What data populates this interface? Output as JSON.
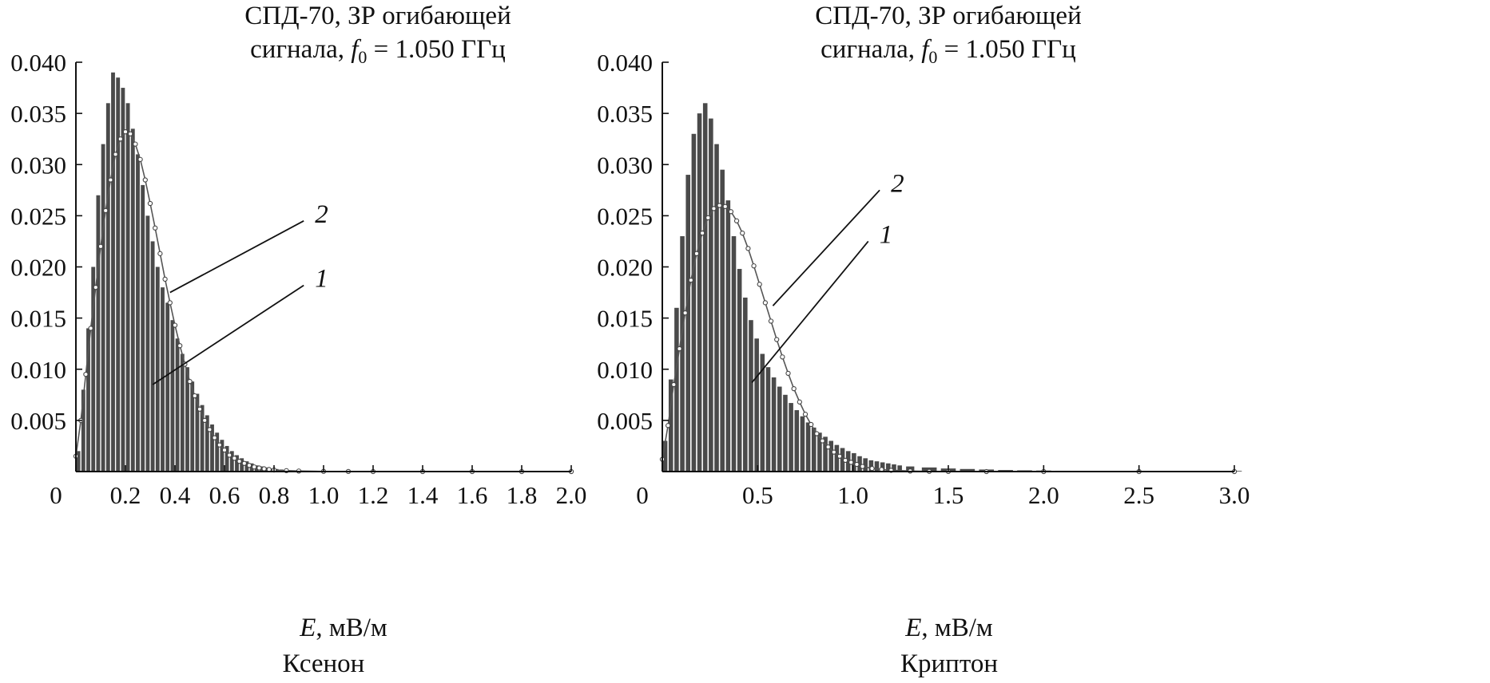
{
  "chart_data": [
    {
      "type": "bar",
      "title_line1": "СПД-70, ЗР огибающей",
      "title_line2_prefix": "сигнала, ",
      "title_f": "f",
      "title_sub": "0",
      "title_line2_suffix": " = 1.050 ГГц",
      "xlabel_var": "E",
      "xlabel_unit": ", мВ/м",
      "caption": "Ксенон",
      "xlim": [
        0,
        2.0
      ],
      "ylim": [
        0,
        0.04
      ],
      "xticks": [
        0,
        0.2,
        0.4,
        0.6,
        0.8,
        1.0,
        1.2,
        1.4,
        1.6,
        1.8,
        2.0
      ],
      "xtick_labels": [
        "0",
        "0.2",
        "0.4",
        "0.6",
        "0.8",
        "1.0",
        "1.2",
        "1.4",
        "1.6",
        "1.8",
        "2.0"
      ],
      "yticks": [
        0.005,
        0.01,
        0.015,
        0.02,
        0.025,
        0.03,
        0.035,
        0.04
      ],
      "ytick_labels": [
        "0.005",
        "0.010",
        "0.015",
        "0.020",
        "0.025",
        "0.030",
        "0.035",
        "0.040"
      ],
      "annotations": [
        {
          "label": "1",
          "from": [
            0.31,
            0.0085
          ],
          "to": [
            0.92,
            0.0182
          ]
        },
        {
          "label": "2",
          "from": [
            0.38,
            0.0175
          ],
          "to": [
            0.92,
            0.0245
          ]
        }
      ],
      "series": [
        {
          "name": "1",
          "kind": "histogram",
          "x": [
            0.01,
            0.03,
            0.05,
            0.07,
            0.09,
            0.11,
            0.13,
            0.15,
            0.17,
            0.19,
            0.21,
            0.23,
            0.25,
            0.27,
            0.29,
            0.31,
            0.33,
            0.35,
            0.37,
            0.39,
            0.41,
            0.43,
            0.45,
            0.47,
            0.49,
            0.51,
            0.53,
            0.55,
            0.57,
            0.59,
            0.61,
            0.63,
            0.65,
            0.67,
            0.69,
            0.71,
            0.73,
            0.75,
            0.77,
            0.79,
            0.81,
            0.83,
            0.85,
            0.87,
            0.89,
            0.95,
            1.05,
            1.15,
            1.25,
            1.35,
            1.45,
            1.55,
            1.65,
            1.75,
            1.85,
            1.95
          ],
          "values": [
            0.002,
            0.008,
            0.014,
            0.02,
            0.027,
            0.032,
            0.036,
            0.039,
            0.0385,
            0.0375,
            0.036,
            0.0335,
            0.031,
            0.028,
            0.025,
            0.0225,
            0.02,
            0.018,
            0.0165,
            0.0148,
            0.013,
            0.0115,
            0.0102,
            0.0088,
            0.0076,
            0.0065,
            0.0055,
            0.0046,
            0.0038,
            0.0031,
            0.0025,
            0.002,
            0.0016,
            0.0013,
            0.001,
            0.0008,
            0.0006,
            0.0005,
            0.0004,
            0.0003,
            0.00025,
            0.0002,
            0.00015,
            0.0001,
            0.0001,
            8e-05,
            6e-05,
            5e-05,
            4e-05,
            3e-05,
            3e-05,
            2e-05,
            2e-05,
            2e-05,
            1e-05,
            1e-05
          ]
        },
        {
          "name": "2",
          "kind": "line",
          "x": [
            0.0,
            0.02,
            0.04,
            0.06,
            0.08,
            0.1,
            0.12,
            0.14,
            0.16,
            0.18,
            0.2,
            0.22,
            0.24,
            0.26,
            0.28,
            0.3,
            0.32,
            0.34,
            0.36,
            0.38,
            0.4,
            0.42,
            0.44,
            0.46,
            0.48,
            0.5,
            0.52,
            0.54,
            0.56,
            0.58,
            0.6,
            0.62,
            0.64,
            0.66,
            0.68,
            0.7,
            0.72,
            0.74,
            0.76,
            0.78,
            0.8,
            0.85,
            0.9,
            1.0,
            1.1,
            1.2,
            1.4,
            1.6,
            1.8,
            2.0
          ],
          "values": [
            0.0015,
            0.005,
            0.0095,
            0.014,
            0.018,
            0.022,
            0.0255,
            0.0285,
            0.031,
            0.0325,
            0.0332,
            0.033,
            0.032,
            0.0305,
            0.0285,
            0.0262,
            0.0238,
            0.0213,
            0.0188,
            0.0165,
            0.0143,
            0.0123,
            0.0105,
            0.0088,
            0.0074,
            0.0061,
            0.005,
            0.0041,
            0.0033,
            0.0026,
            0.0021,
            0.0016,
            0.0013,
            0.001,
            0.0008,
            0.0006,
            0.00045,
            0.00035,
            0.00027,
            0.0002,
            0.00015,
            9e-05,
            5e-05,
            2e-05,
            1e-05,
            0.0,
            0.0,
            0.0,
            0.0,
            0.0
          ]
        }
      ]
    },
    {
      "type": "bar",
      "title_line1": "СПД-70, ЗР огибающей",
      "title_line2_prefix": "сигнала, ",
      "title_f": "f",
      "title_sub": "0",
      "title_line2_suffix": " = 1.050 ГГц",
      "xlabel_var": "E",
      "xlabel_unit": ", мВ/м",
      "caption": "Криптон",
      "xlim": [
        0,
        3.0
      ],
      "ylim": [
        0,
        0.04
      ],
      "xticks": [
        0,
        0.5,
        1.0,
        1.5,
        2.0,
        2.5,
        3.0
      ],
      "xtick_labels": [
        "0",
        "0.5",
        "1.0",
        "1.5",
        "2.0",
        "2.5",
        "3.0"
      ],
      "yticks": [
        0.005,
        0.01,
        0.015,
        0.02,
        0.025,
        0.03,
        0.035,
        0.04
      ],
      "ytick_labels": [
        "0.005",
        "0.010",
        "0.015",
        "0.020",
        "0.025",
        "0.030",
        "0.035",
        "0.040"
      ],
      "annotations": [
        {
          "label": "1",
          "from": [
            0.47,
            0.0087
          ],
          "to": [
            1.08,
            0.0225
          ]
        },
        {
          "label": "2",
          "from": [
            0.58,
            0.0162
          ],
          "to": [
            1.14,
            0.0275
          ]
        }
      ],
      "series": [
        {
          "name": "1",
          "kind": "histogram",
          "x": [
            0.015,
            0.045,
            0.075,
            0.105,
            0.135,
            0.165,
            0.195,
            0.225,
            0.255,
            0.285,
            0.315,
            0.345,
            0.375,
            0.405,
            0.435,
            0.465,
            0.495,
            0.525,
            0.555,
            0.585,
            0.615,
            0.645,
            0.675,
            0.705,
            0.735,
            0.765,
            0.795,
            0.825,
            0.855,
            0.885,
            0.915,
            0.945,
            0.975,
            1.005,
            1.035,
            1.065,
            1.095,
            1.125,
            1.155,
            1.185,
            1.215,
            1.245,
            1.3,
            1.4,
            1.5,
            1.6,
            1.7,
            1.8,
            1.9,
            2.0,
            2.1,
            2.2,
            2.3,
            2.4,
            2.5,
            2.6,
            2.7,
            2.8,
            2.9,
            3.0
          ],
          "values": [
            0.003,
            0.009,
            0.016,
            0.023,
            0.029,
            0.033,
            0.035,
            0.036,
            0.0345,
            0.032,
            0.0295,
            0.0265,
            0.023,
            0.0198,
            0.017,
            0.0148,
            0.013,
            0.0115,
            0.0102,
            0.0092,
            0.0083,
            0.0075,
            0.0067,
            0.006,
            0.0054,
            0.0048,
            0.0043,
            0.0038,
            0.0034,
            0.003,
            0.0026,
            0.0023,
            0.002,
            0.0018,
            0.0015,
            0.0013,
            0.0011,
            0.001,
            0.0009,
            0.0008,
            0.0007,
            0.0006,
            0.0005,
            0.0004,
            0.0003,
            0.00025,
            0.0002,
            0.00015,
            0.00012,
            0.0001,
            8e-05,
            6e-05,
            5e-05,
            4e-05,
            3e-05,
            3e-05,
            2e-05,
            2e-05,
            2e-05,
            1e-05
          ]
        },
        {
          "name": "2",
          "kind": "line",
          "x": [
            0.0,
            0.03,
            0.06,
            0.09,
            0.12,
            0.15,
            0.18,
            0.21,
            0.24,
            0.27,
            0.3,
            0.33,
            0.36,
            0.39,
            0.42,
            0.45,
            0.48,
            0.51,
            0.54,
            0.57,
            0.6,
            0.63,
            0.66,
            0.69,
            0.72,
            0.75,
            0.78,
            0.81,
            0.84,
            0.87,
            0.9,
            0.93,
            0.96,
            0.99,
            1.02,
            1.05,
            1.1,
            1.15,
            1.2,
            1.3,
            1.4,
            1.5,
            1.7,
            2.0,
            2.5,
            3.0
          ],
          "values": [
            0.0012,
            0.0045,
            0.0085,
            0.012,
            0.0155,
            0.0187,
            0.0213,
            0.0233,
            0.0248,
            0.0257,
            0.026,
            0.0259,
            0.0254,
            0.0245,
            0.0233,
            0.0218,
            0.0201,
            0.0183,
            0.0165,
            0.0147,
            0.0129,
            0.0112,
            0.0096,
            0.0081,
            0.0068,
            0.0056,
            0.0046,
            0.0037,
            0.003,
            0.0024,
            0.0019,
            0.0015,
            0.0011,
            0.0009,
            0.0007,
            0.0005,
            0.0003,
            0.0002,
            0.00012,
            5e-05,
            2e-05,
            1e-05,
            0.0,
            0.0,
            0.0,
            0.0
          ]
        }
      ]
    }
  ]
}
